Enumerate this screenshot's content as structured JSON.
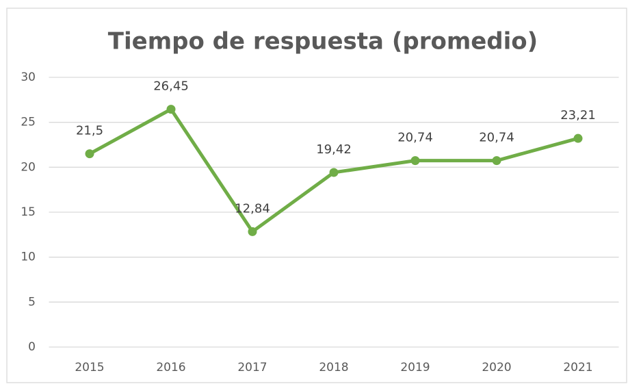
{
  "chart_data": {
    "type": "line",
    "title": "Tiempo de respuesta (promedio)",
    "categories": [
      "2015",
      "2016",
      "2017",
      "2018",
      "2019",
      "2020",
      "2021"
    ],
    "series": [
      {
        "name": "Tiempo de respuesta (promedio)",
        "color": "#70ad47",
        "values": [
          21.5,
          26.45,
          12.84,
          19.42,
          20.74,
          20.74,
          23.21
        ],
        "value_labels": [
          "21,5",
          "26,45",
          "12,84",
          "19,42",
          "20,74",
          "20,74",
          "23,21"
        ]
      }
    ],
    "ylim": [
      0,
      30
    ],
    "yticks": [
      0,
      5,
      10,
      15,
      20,
      25,
      30
    ],
    "grid": true
  }
}
